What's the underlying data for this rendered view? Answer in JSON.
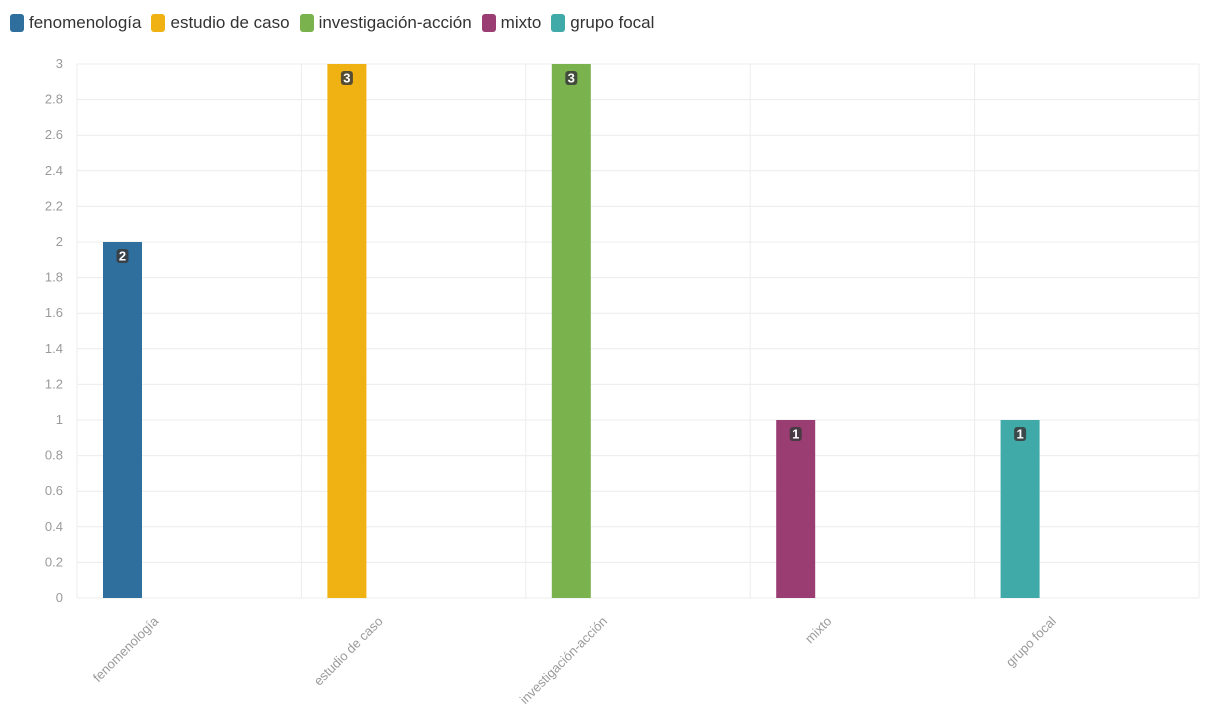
{
  "chart_data": {
    "type": "bar",
    "categories": [
      "fenomenología",
      "estudio de caso",
      "investigación-acción",
      "mixto",
      "grupo focal"
    ],
    "values": [
      2,
      3,
      3,
      1,
      1
    ],
    "colors": [
      "#2e6f9e",
      "#f0b212",
      "#7ab24e",
      "#993d73",
      "#3faaa8"
    ],
    "yticks": [
      "0",
      "0.2",
      "0.4",
      "0.6",
      "0.8",
      "1",
      "1.2",
      "1.4",
      "1.6",
      "1.8",
      "2",
      "2.2",
      "2.4",
      "2.6",
      "2.8",
      "3"
    ],
    "ylim": [
      0,
      3
    ],
    "grid": true,
    "legend_position": "top-left",
    "title": "",
    "xlabel": "",
    "ylabel": ""
  },
  "legend": {
    "items": [
      {
        "label": "fenomenología",
        "color": "#2e6f9e"
      },
      {
        "label": "estudio de caso",
        "color": "#f0b212"
      },
      {
        "label": "investigación-acción",
        "color": "#7ab24e"
      },
      {
        "label": "mixto",
        "color": "#993d73"
      },
      {
        "label": "grupo focal",
        "color": "#3faaa8"
      }
    ]
  }
}
